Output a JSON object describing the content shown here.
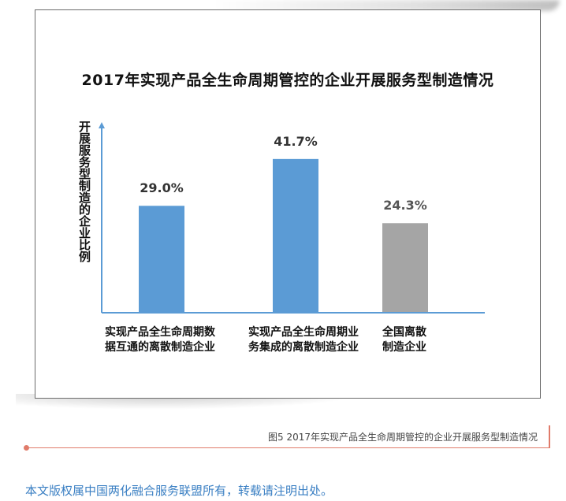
{
  "chart_data": {
    "type": "bar",
    "title": "2017年实现产品全生命周期管控的企业开展服务型制造情况",
    "ylabel": "开展服务型制造的企业比例",
    "xlabel": "",
    "categories": [
      [
        "实现产品全生命周期数",
        "据互通的离散制造企业"
      ],
      [
        "实现产品全生命周期业",
        "务集成的离散制造企业"
      ],
      [
        "全国离散",
        "制造企业"
      ]
    ],
    "values": [
      29.0,
      41.7,
      24.3
    ],
    "value_labels": [
      "29.0%",
      "41.7%",
      "24.3%"
    ],
    "bar_colors": [
      "#5b9bd5",
      "#5b9bd5",
      "#a5a5a5"
    ],
    "ylim": [
      0,
      50
    ],
    "grid": false,
    "legend": "none"
  },
  "caption": "图5 2017年实现产品全生命周期管控的企业开展服务型制造情况",
  "copyright": "本文版权属中国两化融合服务联盟所有，转载请注明出处。",
  "colors": {
    "axis": "#5b9bd5",
    "accent_line": "#e07b6a",
    "copyright_text": "#3a7fc3"
  }
}
